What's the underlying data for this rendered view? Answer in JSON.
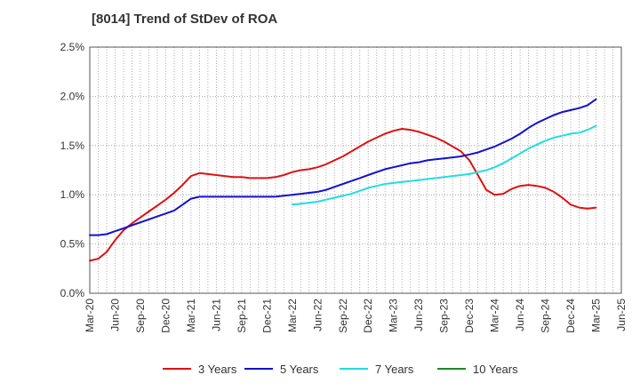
{
  "chart_data": {
    "type": "line",
    "title": "[8014]  Trend of StDev of ROA",
    "xlabel": "",
    "ylabel": "",
    "ylim": [
      0,
      2.5
    ],
    "y_ticks": [
      "0.0%",
      "0.5%",
      "1.0%",
      "1.5%",
      "2.0%",
      "2.5%"
    ],
    "y_tick_values": [
      0,
      0.5,
      1.0,
      1.5,
      2.0,
      2.5
    ],
    "x_ticks": [
      "Mar-20",
      "Jun-20",
      "Sep-20",
      "Dec-20",
      "Mar-21",
      "Jun-21",
      "Sep-21",
      "Dec-21",
      "Mar-22",
      "Jun-22",
      "Sep-22",
      "Dec-22",
      "Mar-23",
      "Jun-23",
      "Sep-23",
      "Dec-23",
      "Mar-24",
      "Jun-24",
      "Sep-24",
      "Dec-24",
      "Mar-25",
      "Jun-25"
    ],
    "x_range_months": [
      "2020-03",
      "2025-06"
    ],
    "grid": "dotted",
    "legend_position": "bottom",
    "series": [
      {
        "name": "3 Years",
        "color": "#dd1111",
        "x": [
          "2020-03",
          "2020-04",
          "2020-05",
          "2020-06",
          "2020-07",
          "2020-08",
          "2020-09",
          "2020-10",
          "2020-11",
          "2020-12",
          "2021-01",
          "2021-02",
          "2021-03",
          "2021-04",
          "2021-05",
          "2021-06",
          "2021-07",
          "2021-08",
          "2021-09",
          "2021-10",
          "2021-11",
          "2021-12",
          "2022-01",
          "2022-02",
          "2022-03",
          "2022-04",
          "2022-05",
          "2022-06",
          "2022-07",
          "2022-08",
          "2022-09",
          "2022-10",
          "2022-11",
          "2022-12",
          "2023-01",
          "2023-02",
          "2023-03",
          "2023-04",
          "2023-05",
          "2023-06",
          "2023-07",
          "2023-08",
          "2023-09",
          "2023-10",
          "2023-11",
          "2023-12",
          "2024-01",
          "2024-02",
          "2024-03",
          "2024-04",
          "2024-05",
          "2024-06",
          "2024-07",
          "2024-08",
          "2024-09",
          "2024-10",
          "2024-11",
          "2024-12",
          "2025-01",
          "2025-02",
          "2025-03"
        ],
        "values": [
          0.33,
          0.35,
          0.42,
          0.54,
          0.64,
          0.71,
          0.77,
          0.83,
          0.89,
          0.95,
          1.02,
          1.1,
          1.19,
          1.22,
          1.21,
          1.2,
          1.19,
          1.18,
          1.18,
          1.17,
          1.17,
          1.17,
          1.18,
          1.2,
          1.23,
          1.25,
          1.26,
          1.28,
          1.31,
          1.35,
          1.39,
          1.44,
          1.49,
          1.54,
          1.58,
          1.62,
          1.65,
          1.67,
          1.66,
          1.64,
          1.61,
          1.58,
          1.54,
          1.49,
          1.44,
          1.35,
          1.2,
          1.05,
          1.0,
          1.01,
          1.06,
          1.09,
          1.1,
          1.09,
          1.07,
          1.03,
          0.97,
          0.9,
          0.87,
          0.86,
          0.87
        ]
      },
      {
        "name": "5 Years",
        "color": "#1111cc",
        "x": [
          "2020-03",
          "2020-04",
          "2020-05",
          "2020-06",
          "2020-07",
          "2020-08",
          "2020-09",
          "2020-10",
          "2020-11",
          "2020-12",
          "2021-01",
          "2021-02",
          "2021-03",
          "2021-04",
          "2021-05",
          "2021-06",
          "2021-07",
          "2021-08",
          "2021-09",
          "2021-10",
          "2021-11",
          "2021-12",
          "2022-01",
          "2022-02",
          "2022-03",
          "2022-04",
          "2022-05",
          "2022-06",
          "2022-07",
          "2022-08",
          "2022-09",
          "2022-10",
          "2022-11",
          "2022-12",
          "2023-01",
          "2023-02",
          "2023-03",
          "2023-04",
          "2023-05",
          "2023-06",
          "2023-07",
          "2023-08",
          "2023-09",
          "2023-10",
          "2023-11",
          "2023-12",
          "2024-01",
          "2024-02",
          "2024-03",
          "2024-04",
          "2024-05",
          "2024-06",
          "2024-07",
          "2024-08",
          "2024-09",
          "2024-10",
          "2024-11",
          "2024-12",
          "2025-01",
          "2025-02",
          "2025-03"
        ],
        "values": [
          0.59,
          0.59,
          0.6,
          0.63,
          0.66,
          0.69,
          0.72,
          0.75,
          0.78,
          0.81,
          0.84,
          0.9,
          0.96,
          0.98,
          0.98,
          0.98,
          0.98,
          0.98,
          0.98,
          0.98,
          0.98,
          0.98,
          0.98,
          0.99,
          1.0,
          1.01,
          1.02,
          1.03,
          1.05,
          1.08,
          1.11,
          1.14,
          1.17,
          1.2,
          1.23,
          1.26,
          1.28,
          1.3,
          1.32,
          1.33,
          1.35,
          1.36,
          1.37,
          1.38,
          1.39,
          1.41,
          1.43,
          1.46,
          1.49,
          1.53,
          1.57,
          1.62,
          1.68,
          1.73,
          1.77,
          1.81,
          1.84,
          1.86,
          1.88,
          1.91,
          1.97
        ]
      },
      {
        "name": "7 Years",
        "color": "#22dddd",
        "x": [
          "2022-03",
          "2022-04",
          "2022-05",
          "2022-06",
          "2022-07",
          "2022-08",
          "2022-09",
          "2022-10",
          "2022-11",
          "2022-12",
          "2023-01",
          "2023-02",
          "2023-03",
          "2023-04",
          "2023-05",
          "2023-06",
          "2023-07",
          "2023-08",
          "2023-09",
          "2023-10",
          "2023-11",
          "2023-12",
          "2024-01",
          "2024-02",
          "2024-03",
          "2024-04",
          "2024-05",
          "2024-06",
          "2024-07",
          "2024-08",
          "2024-09",
          "2024-10",
          "2024-11",
          "2024-12",
          "2025-01",
          "2025-02",
          "2025-03"
        ],
        "values": [
          0.9,
          0.91,
          0.92,
          0.93,
          0.95,
          0.97,
          0.99,
          1.01,
          1.04,
          1.07,
          1.09,
          1.11,
          1.12,
          1.13,
          1.14,
          1.15,
          1.16,
          1.17,
          1.18,
          1.19,
          1.2,
          1.21,
          1.23,
          1.25,
          1.28,
          1.32,
          1.37,
          1.42,
          1.47,
          1.51,
          1.55,
          1.58,
          1.6,
          1.62,
          1.63,
          1.66,
          1.7
        ]
      },
      {
        "name": "10 Years",
        "color": "#228822",
        "x": [],
        "values": []
      }
    ]
  }
}
